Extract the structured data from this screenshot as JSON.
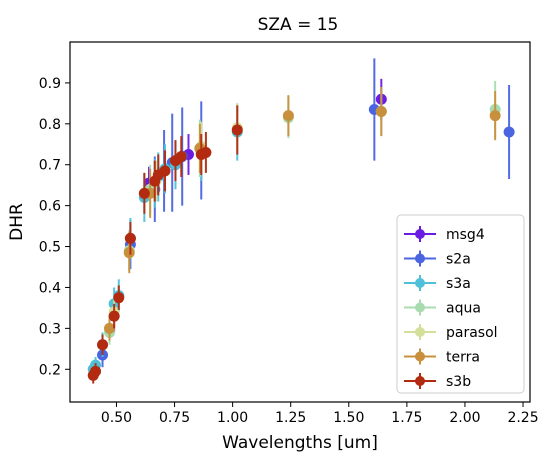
{
  "chart_data": {
    "type": "scatter",
    "title": "SZA = 15",
    "xlabel": "Wavelengths [um]",
    "ylabel": "DHR",
    "xlim": [
      0.3,
      2.28
    ],
    "ylim": [
      0.12,
      1.0
    ],
    "xticks": [
      "0.50",
      "0.75",
      "1.00",
      "1.25",
      "1.50",
      "1.75",
      "2.00",
      "2.25"
    ],
    "yticks": [
      "0.2",
      "0.3",
      "0.4",
      "0.5",
      "0.6",
      "0.7",
      "0.8",
      "0.9"
    ],
    "grid": false,
    "legend_position": "lower-right",
    "series": [
      {
        "name": "msg4",
        "color": "#6a1de0",
        "points": [
          {
            "x": 0.64,
            "y": 0.655,
            "err": 0.04
          },
          {
            "x": 0.81,
            "y": 0.725,
            "err": 0.05
          },
          {
            "x": 1.64,
            "y": 0.86,
            "err": 0.05
          }
        ]
      },
      {
        "name": "s2a",
        "color": "#4b64e0",
        "points": [
          {
            "x": 0.44,
            "y": 0.235,
            "err": 0.03
          },
          {
            "x": 0.49,
            "y": 0.33,
            "err": 0.04
          },
          {
            "x": 0.56,
            "y": 0.505,
            "err": 0.06
          },
          {
            "x": 0.665,
            "y": 0.64,
            "err": 0.08
          },
          {
            "x": 0.705,
            "y": 0.685,
            "err": 0.1
          },
          {
            "x": 0.74,
            "y": 0.705,
            "err": 0.12
          },
          {
            "x": 0.783,
            "y": 0.72,
            "err": 0.12
          },
          {
            "x": 0.865,
            "y": 0.735,
            "err": 0.12
          },
          {
            "x": 1.61,
            "y": 0.835,
            "err": 0.125
          },
          {
            "x": 2.19,
            "y": 0.78,
            "err": 0.115
          }
        ]
      },
      {
        "name": "s3a",
        "color": "#4fc0d8",
        "points": [
          {
            "x": 0.4,
            "y": 0.2,
            "err": 0.02
          },
          {
            "x": 0.41,
            "y": 0.21,
            "err": 0.02
          },
          {
            "x": 0.44,
            "y": 0.26,
            "err": 0.03
          },
          {
            "x": 0.49,
            "y": 0.36,
            "err": 0.04
          },
          {
            "x": 0.51,
            "y": 0.38,
            "err": 0.04
          },
          {
            "x": 0.56,
            "y": 0.52,
            "err": 0.05
          },
          {
            "x": 0.62,
            "y": 0.62,
            "err": 0.06
          },
          {
            "x": 0.665,
            "y": 0.655,
            "err": 0.06
          },
          {
            "x": 0.68,
            "y": 0.67,
            "err": 0.06
          },
          {
            "x": 0.709,
            "y": 0.69,
            "err": 0.06
          },
          {
            "x": 0.754,
            "y": 0.7,
            "err": 0.06
          },
          {
            "x": 0.865,
            "y": 0.73,
            "err": 0.07
          },
          {
            "x": 1.02,
            "y": 0.78,
            "err": 0.07
          }
        ]
      },
      {
        "name": "aqua",
        "color": "#a8dcb0",
        "points": [
          {
            "x": 0.47,
            "y": 0.29,
            "err": 0.03
          },
          {
            "x": 0.555,
            "y": 0.49,
            "err": 0.05
          },
          {
            "x": 0.645,
            "y": 0.64,
            "err": 0.06
          },
          {
            "x": 0.859,
            "y": 0.74,
            "err": 0.07
          },
          {
            "x": 1.24,
            "y": 0.815,
            "err": 0.05
          },
          {
            "x": 1.64,
            "y": 0.83,
            "err": 0.06
          },
          {
            "x": 2.13,
            "y": 0.835,
            "err": 0.07
          }
        ]
      },
      {
        "name": "parasol",
        "color": "#d4e09a",
        "points": [
          {
            "x": 0.49,
            "y": 0.34,
            "err": 0.03
          },
          {
            "x": 0.67,
            "y": 0.66,
            "err": 0.05
          },
          {
            "x": 0.865,
            "y": 0.745,
            "err": 0.06
          },
          {
            "x": 1.02,
            "y": 0.79,
            "err": 0.06
          }
        ]
      },
      {
        "name": "terra",
        "color": "#c8903c",
        "points": [
          {
            "x": 0.47,
            "y": 0.3,
            "err": 0.03
          },
          {
            "x": 0.555,
            "y": 0.485,
            "err": 0.05
          },
          {
            "x": 0.645,
            "y": 0.63,
            "err": 0.06
          },
          {
            "x": 0.859,
            "y": 0.74,
            "err": 0.06
          },
          {
            "x": 1.24,
            "y": 0.82,
            "err": 0.05
          },
          {
            "x": 1.64,
            "y": 0.83,
            "err": 0.06
          },
          {
            "x": 2.13,
            "y": 0.82,
            "err": 0.06
          }
        ]
      },
      {
        "name": "s3b",
        "color": "#b22a10",
        "points": [
          {
            "x": 0.4,
            "y": 0.185,
            "err": 0.02
          },
          {
            "x": 0.41,
            "y": 0.195,
            "err": 0.02
          },
          {
            "x": 0.44,
            "y": 0.26,
            "err": 0.025
          },
          {
            "x": 0.49,
            "y": 0.33,
            "err": 0.03
          },
          {
            "x": 0.51,
            "y": 0.375,
            "err": 0.03
          },
          {
            "x": 0.56,
            "y": 0.52,
            "err": 0.04
          },
          {
            "x": 0.62,
            "y": 0.63,
            "err": 0.05
          },
          {
            "x": 0.665,
            "y": 0.66,
            "err": 0.05
          },
          {
            "x": 0.68,
            "y": 0.675,
            "err": 0.05
          },
          {
            "x": 0.709,
            "y": 0.685,
            "err": 0.05
          },
          {
            "x": 0.754,
            "y": 0.71,
            "err": 0.05
          },
          {
            "x": 0.779,
            "y": 0.72,
            "err": 0.05
          },
          {
            "x": 0.865,
            "y": 0.725,
            "err": 0.05
          },
          {
            "x": 0.885,
            "y": 0.73,
            "err": 0.05
          },
          {
            "x": 1.02,
            "y": 0.785,
            "err": 0.06
          }
        ]
      }
    ]
  }
}
